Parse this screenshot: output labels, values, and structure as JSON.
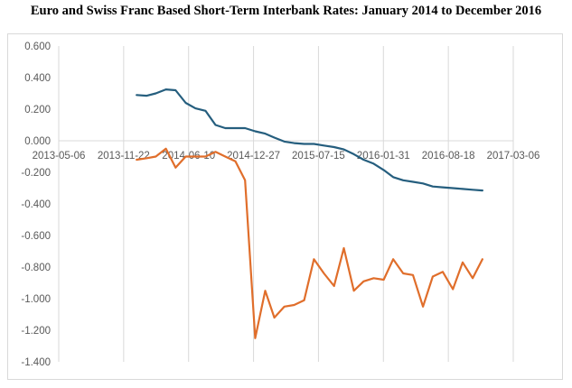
{
  "chart_data": {
    "type": "line",
    "title": "Euro and Swiss Franc Based Short-Term Interbank Rates: January 2014 to December 2016",
    "xlabel": "",
    "ylabel": "",
    "ylim": [
      -1.4,
      0.6
    ],
    "xlim": [
      "2013-05-06",
      "2017-03-06"
    ],
    "y_ticks": [
      "0.600",
      "0.400",
      "0.200",
      "0.000",
      "-0.200",
      "-0.400",
      "-0.600",
      "-0.800",
      "-1.000",
      "-1.200",
      "-1.400"
    ],
    "x_ticks": [
      "2013-05-06",
      "2013-11-22",
      "2014-06-10",
      "2014-12-27",
      "2015-07-15",
      "2016-01-31",
      "2016-08-18",
      "2017-03-06"
    ],
    "grid": "vertical",
    "legend": "none",
    "series": [
      {
        "color": "#255E7E",
        "x": [
          "2014-01-01",
          "2014-02-01",
          "2014-03-01",
          "2014-04-01",
          "2014-05-01",
          "2014-06-01",
          "2014-07-01",
          "2014-08-01",
          "2014-09-01",
          "2014-10-01",
          "2014-11-01",
          "2014-12-01",
          "2015-01-01",
          "2015-02-01",
          "2015-03-01",
          "2015-04-01",
          "2015-05-01",
          "2015-06-01",
          "2015-07-01",
          "2015-08-01",
          "2015-09-01",
          "2015-10-01",
          "2015-11-01",
          "2015-12-01",
          "2016-01-01",
          "2016-02-01",
          "2016-03-01",
          "2016-04-01",
          "2016-05-01",
          "2016-06-01",
          "2016-07-01",
          "2016-08-01",
          "2016-09-01",
          "2016-10-01",
          "2016-11-01",
          "2016-12-01"
        ],
        "values": [
          0.29,
          0.285,
          0.3,
          0.325,
          0.32,
          0.24,
          0.205,
          0.19,
          0.1,
          0.08,
          0.08,
          0.08,
          0.06,
          0.045,
          0.02,
          -0.005,
          -0.015,
          -0.02,
          -0.02,
          -0.03,
          -0.04,
          -0.055,
          -0.085,
          -0.12,
          -0.145,
          -0.185,
          -0.23,
          -0.25,
          -0.26,
          -0.27,
          -0.29,
          -0.295,
          -0.3,
          -0.305,
          -0.31,
          -0.315
        ]
      },
      {
        "color": "#E06E2B",
        "x": [
          "2014-01-01",
          "2014-02-01",
          "2014-03-01",
          "2014-04-01",
          "2014-05-01",
          "2014-06-01",
          "2014-07-01",
          "2014-08-01",
          "2014-09-01",
          "2014-10-01",
          "2014-11-01",
          "2014-12-01",
          "2015-01-01",
          "2015-02-01",
          "2015-03-01",
          "2015-04-01",
          "2015-05-01",
          "2015-06-01",
          "2015-07-01",
          "2015-08-01",
          "2015-09-01",
          "2015-10-01",
          "2015-11-01",
          "2015-12-01",
          "2016-01-01",
          "2016-02-01",
          "2016-03-01",
          "2016-04-01",
          "2016-05-01",
          "2016-06-01",
          "2016-07-01",
          "2016-08-01",
          "2016-09-01",
          "2016-10-01",
          "2016-11-01",
          "2016-12-01"
        ],
        "values": [
          -0.12,
          -0.11,
          -0.1,
          -0.05,
          -0.17,
          -0.1,
          -0.1,
          -0.1,
          -0.07,
          -0.1,
          -0.13,
          -0.25,
          -1.25,
          -0.95,
          -1.12,
          -1.05,
          -1.04,
          -1.01,
          -0.75,
          -0.84,
          -0.92,
          -0.68,
          -0.95,
          -0.89,
          -0.87,
          -0.88,
          -0.75,
          -0.84,
          -0.85,
          -1.05,
          -0.86,
          -0.83,
          -0.94,
          -0.77,
          -0.87,
          -0.75
        ]
      }
    ]
  }
}
